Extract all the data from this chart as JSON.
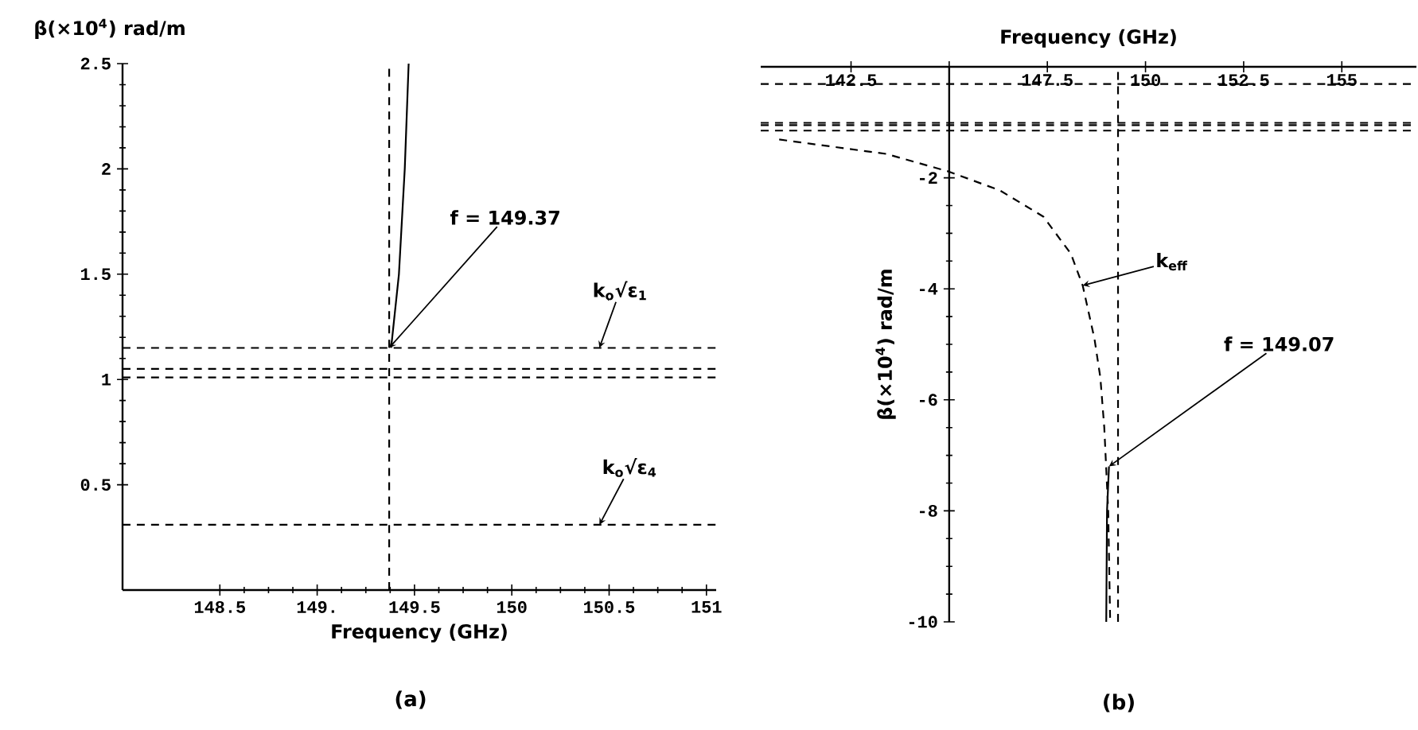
{
  "chart_data": [
    {
      "type": "line",
      "xlabel": "Frequency (GHz)",
      "ylabel": "β(×10$^{4}$) rad/m",
      "xlim": [
        148,
        151.05
      ],
      "ylim": [
        0,
        2.5
      ],
      "xticks": [
        148.5,
        {
          "value": 149,
          "label": "149."
        },
        149.5,
        150,
        150.5,
        151
      ],
      "yticks": [
        0.5,
        1,
        1.5,
        2,
        2.5
      ],
      "series": [
        {
          "color": "#000000",
          "line_style": "solid",
          "x": [
            149.38,
            149.42,
            149.45,
            149.47
          ],
          "values": [
            1.15,
            1.5,
            2,
            2.5
          ]
        }
      ],
      "ref_lines": [
        {
          "axis": "x",
          "value": 149.37,
          "color": "#000000",
          "line_style": "dashed"
        },
        {
          "axis": "y",
          "value": 1.15,
          "color": "#000000",
          "line_style": "dashed"
        },
        {
          "axis": "y",
          "value": 1.05,
          "color": "#000000",
          "line_style": "dashed"
        },
        {
          "axis": "y",
          "value": 1.01,
          "color": "#000000",
          "line_style": "dashed"
        },
        {
          "axis": "y",
          "value": 0.31,
          "color": "#000000",
          "line_style": "dashed"
        }
      ],
      "annotations": [
        {
          "text": "f = 149.37",
          "x": 149.37,
          "y": 1.15
        },
        {
          "text": "k$_{o}$√ε$_{1}$",
          "x": 150.45,
          "y": 1.15
        },
        {
          "text": "k$_{o}$√ε$_{4}$",
          "x": 150.45,
          "y": 0.31
        },
        "(a)"
      ]
    },
    {
      "type": "line",
      "xlabel": "Frequency (GHz)",
      "ylabel": "β(×10$^{4}$) rad/m",
      "xlim": [
        140.2,
        156.9
      ],
      "ylim": [
        -10,
        0
      ],
      "xticks": [
        142.5,
        {
          "value": 145,
          "label": null
        },
        147.5,
        150,
        152.5,
        155
      ],
      "yticks": [
        -10,
        -8,
        -6,
        -4,
        -2
      ],
      "series": [
        {
          "color": "#000000",
          "line_style": "dashed",
          "x": [
            140.67,
            143.4,
            145,
            146.3,
            147.4,
            148.1,
            148.4,
            148.7,
            148.85,
            148.95,
            149.05,
            149.1
          ],
          "values": [
            -1.31,
            -1.57,
            -1.89,
            -2.23,
            -2.7,
            -3.37,
            -3.94,
            -4.9,
            -5.6,
            -6.5,
            -8,
            -10
          ]
        },
        {
          "color": "#000000",
          "line_style": "solid",
          "x": [
            149.07,
            149.02,
            149.0
          ],
          "values": [
            -7.2,
            -8,
            -10
          ]
        }
      ],
      "ref_lines": [
        {
          "axis": "x",
          "value": 149.3,
          "color": "#000000",
          "line_style": "dashed"
        },
        {
          "axis": "y",
          "value": -0.31,
          "color": "#000000",
          "line_style": "dashed"
        },
        {
          "axis": "y",
          "value": -1.01,
          "color": "#000000",
          "line_style": "dashed"
        },
        {
          "axis": "y",
          "value": -1.05,
          "color": "#000000",
          "line_style": "dashed"
        },
        {
          "axis": "y",
          "value": -1.15,
          "color": "#000000",
          "line_style": "dashed"
        }
      ],
      "annotations": [
        {
          "text": "k$_{eff}$",
          "x": 148.4,
          "y": -3.94
        },
        {
          "text": "f = 149.07",
          "x": 149.07,
          "y": -7.2
        },
        "(b)"
      ]
    }
  ]
}
